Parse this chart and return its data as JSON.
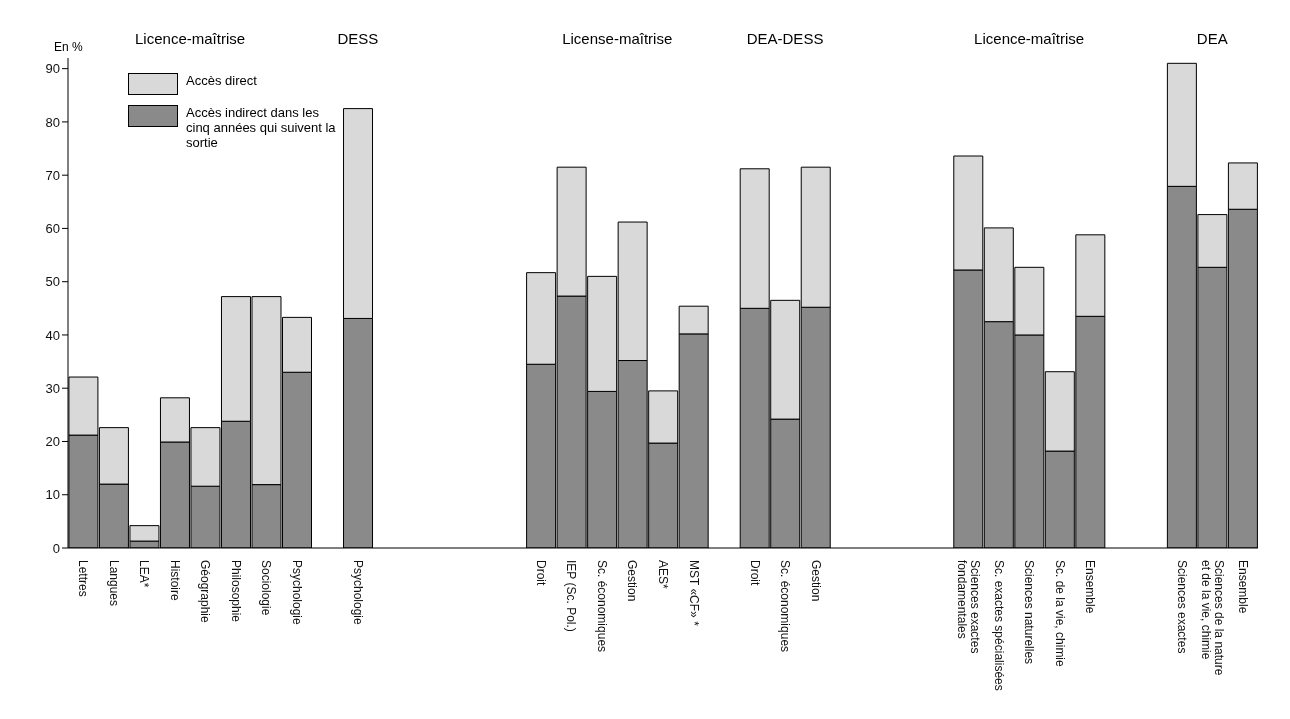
{
  "chart_data": {
    "type": "bar",
    "stacked": true,
    "ylabel": "En %",
    "categories": [
      "Lettres",
      "Langues",
      "LEA*",
      "Histoire",
      "Géographie",
      "Philosophie",
      "Sociologie",
      "Psychologie",
      null,
      "Psychologie",
      null,
      null,
      null,
      null,
      null,
      "Droit",
      "IEP (Sc. Pol.)",
      "Sc. économiques",
      "Gestion",
      "AES*",
      "MST «CF» *",
      null,
      "Droit",
      "Sc. économiques",
      "Gestion",
      null,
      null,
      null,
      null,
      "Sciences exactes\nfondamentales",
      "Sc. exactes spécialisées",
      "Sciences naturelles",
      "Sc. de la vie, chimie",
      "Ensemble",
      null,
      null,
      "Sciences exactes",
      "Sciences de la nature\net de la vie, chimie",
      "Ensemble"
    ],
    "series": [
      {
        "name": "Accès indirect dans les cinq années qui suivent la sortie",
        "color": "#8a8a8a",
        "values": [
          21.2,
          12.0,
          1.3,
          19.9,
          11.6,
          23.8,
          11.9,
          33.0,
          null,
          43.1,
          null,
          null,
          null,
          null,
          null,
          34.5,
          47.3,
          29.4,
          35.2,
          19.7,
          40.2,
          null,
          45.0,
          24.2,
          45.2,
          null,
          null,
          null,
          null,
          52.2,
          42.5,
          40.0,
          18.2,
          43.5,
          null,
          null,
          67.9,
          52.7,
          63.6
        ]
      },
      {
        "name": "Accès direct",
        "color": "#d9d9d9",
        "values": [
          10.9,
          10.6,
          2.9,
          8.3,
          11.0,
          23.4,
          35.3,
          10.3,
          null,
          39.4,
          null,
          null,
          null,
          null,
          null,
          17.2,
          24.2,
          21.6,
          26.0,
          9.8,
          5.2,
          null,
          26.2,
          22.3,
          26.3,
          null,
          null,
          null,
          null,
          21.4,
          17.6,
          12.7,
          14.9,
          15.3,
          null,
          null,
          23.1,
          9.9,
          8.7
        ]
      }
    ],
    "ylim": [
      0,
      92
    ],
    "yticks": [
      0,
      10,
      20,
      30,
      40,
      50,
      60,
      70,
      80,
      90
    ],
    "legend": "top left",
    "annotations": [
      "Licence-maîtrise",
      "DESS",
      "License-maîtrise",
      "DEA-DESS",
      "Licence-maîtrise",
      "DEA"
    ]
  }
}
